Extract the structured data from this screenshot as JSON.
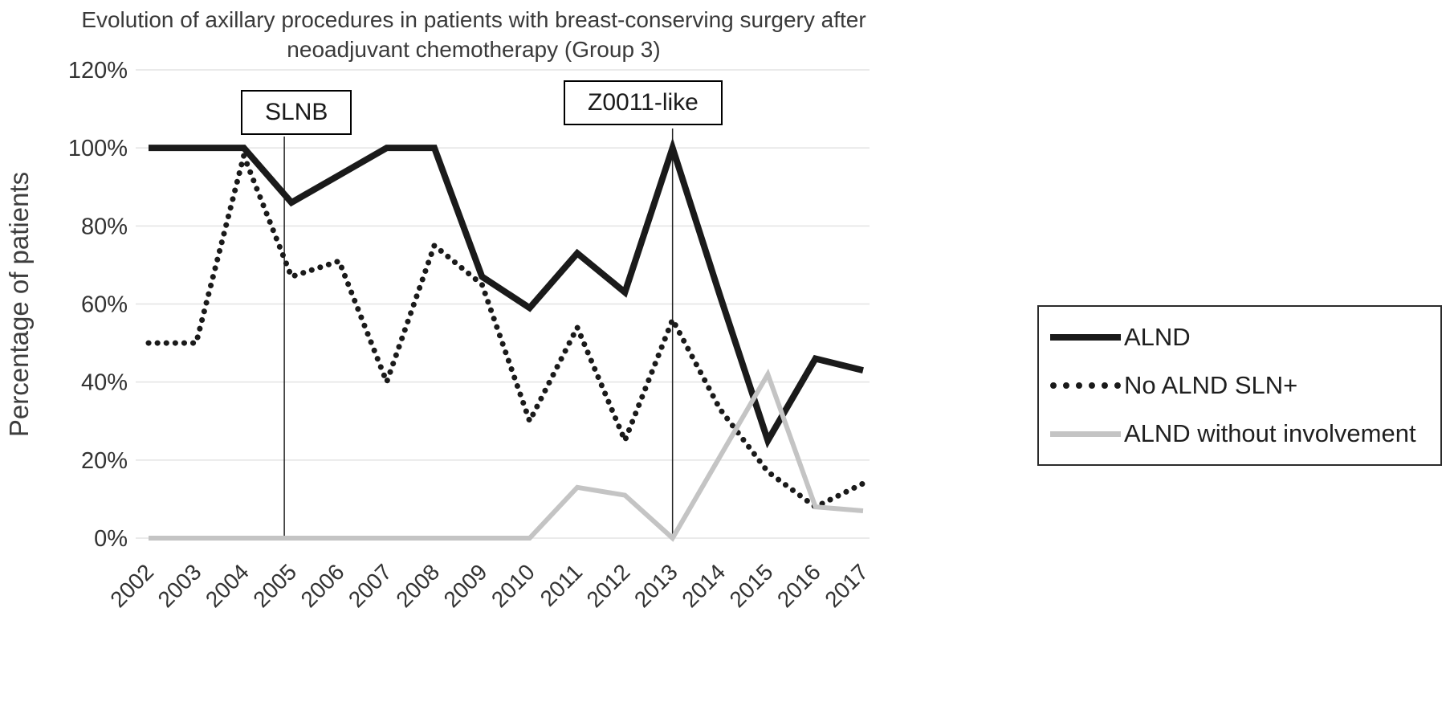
{
  "title": {
    "line1": "Evolution of axillary procedures in patients with breast-conserving surgery after",
    "line2": "neoadjuvant chemotherapy (Group 3)"
  },
  "chart_data": {
    "type": "line",
    "title": "Evolution of axillary procedures in patients with breast-conserving surgery after neoadjuvant chemotherapy (Group 3)",
    "xlabel": "",
    "ylabel": "Percentage of patients",
    "ylim": [
      0,
      120
    ],
    "grid": "horizontal",
    "legend_position": "right",
    "y_ticks": [
      "0%",
      "20%",
      "40%",
      "60%",
      "80%",
      "100%",
      "120%"
    ],
    "y_tick_values": [
      0,
      20,
      40,
      60,
      80,
      100,
      120
    ],
    "categories": [
      "2002",
      "2003",
      "2004",
      "2005",
      "2006",
      "2007",
      "2008",
      "2009",
      "2010",
      "2011",
      "2012",
      "2013",
      "2014",
      "2015",
      "2016",
      "2017"
    ],
    "series": [
      {
        "name": "ALND",
        "color": "#1a1a1a",
        "line_style": "solid",
        "values": [
          100,
          100,
          100,
          86,
          93,
          100,
          100,
          67,
          59,
          73,
          63,
          100,
          62,
          25,
          46,
          43
        ]
      },
      {
        "name": "No ALND SLN+",
        "color": "#1a1a1a",
        "line_style": "dotted",
        "values": [
          50,
          50,
          98,
          67,
          71,
          40,
          75,
          65,
          30,
          54,
          25,
          56,
          33,
          17,
          8,
          14
        ]
      },
      {
        "name": "ALND without involvement",
        "color": "#c4c4c4",
        "line_style": "solid",
        "values": [
          0,
          0,
          0,
          0,
          0,
          0,
          0,
          0,
          0,
          13,
          11,
          0,
          21,
          42,
          8,
          7
        ]
      }
    ],
    "annotations": [
      {
        "label": "SLNB",
        "x_index": 2.85
      },
      {
        "label": "Z0011-like",
        "x_index": 11
      }
    ]
  },
  "legend": {
    "items": [
      {
        "label": "ALND"
      },
      {
        "label": "No ALND SLN+"
      },
      {
        "label": "ALND without involvement"
      }
    ]
  }
}
